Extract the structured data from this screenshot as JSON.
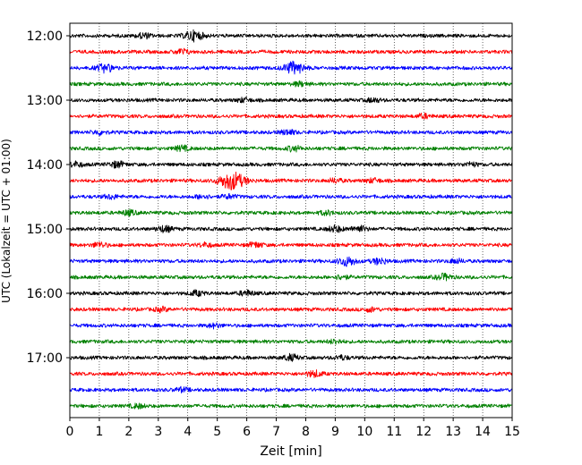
{
  "chart_data": {
    "type": "line",
    "title": "",
    "xlabel": "Zeit  [min]",
    "ylabel": "UTC (Lokalzeit = UTC + 01:00)",
    "xlim": [
      0,
      15
    ],
    "x_ticks": [
      "0",
      "1",
      "2",
      "3",
      "4",
      "5",
      "6",
      "7",
      "8",
      "9",
      "10",
      "11",
      "12",
      "13",
      "14",
      "15"
    ],
    "y_ticks": [
      "12:00",
      "13:00",
      "14:00",
      "15:00",
      "16:00",
      "17:00"
    ],
    "grid": "vertical dotted lines at each minute",
    "trace_interval_minutes": 15,
    "row_count": 24,
    "color_cycle": [
      "#000000",
      "#ff0000",
      "#0000ff",
      "#008000"
    ],
    "series": [
      {
        "start": "12:00",
        "color": "#000000",
        "events": [
          [
            4.2,
            1.0
          ],
          [
            2.5,
            0.5
          ]
        ]
      },
      {
        "start": "12:15",
        "color": "#ff0000",
        "events": [
          [
            3.8,
            0.5
          ]
        ]
      },
      {
        "start": "12:30",
        "color": "#0000ff",
        "events": [
          [
            1.2,
            0.8
          ],
          [
            7.6,
            1.2
          ]
        ]
      },
      {
        "start": "12:45",
        "color": "#008000",
        "events": [
          [
            7.8,
            0.4
          ]
        ]
      },
      {
        "start": "13:00",
        "color": "#000000",
        "events": [
          [
            5.9,
            0.4
          ],
          [
            10.3,
            0.4
          ]
        ]
      },
      {
        "start": "13:15",
        "color": "#ff0000",
        "events": [
          [
            12.0,
            0.4
          ]
        ]
      },
      {
        "start": "13:30",
        "color": "#0000ff",
        "events": [
          [
            1.0,
            0.4
          ],
          [
            7.4,
            0.5
          ]
        ]
      },
      {
        "start": "13:45",
        "color": "#008000",
        "events": [
          [
            3.8,
            0.5
          ],
          [
            7.6,
            0.5
          ]
        ]
      },
      {
        "start": "14:00",
        "color": "#000000",
        "events": [
          [
            0.2,
            0.5
          ],
          [
            1.6,
            0.6
          ],
          [
            13.6,
            0.4
          ]
        ]
      },
      {
        "start": "14:15",
        "color": "#ff0000",
        "events": [
          [
            5.5,
            1.8
          ],
          [
            9.0,
            0.4
          ],
          [
            10.3,
            0.4
          ]
        ]
      },
      {
        "start": "14:30",
        "color": "#0000ff",
        "events": [
          [
            1.4,
            0.4
          ],
          [
            4.5,
            0.4
          ],
          [
            5.4,
            0.4
          ]
        ]
      },
      {
        "start": "14:45",
        "color": "#008000",
        "events": [
          [
            2.0,
            0.5
          ],
          [
            8.7,
            0.4
          ]
        ]
      },
      {
        "start": "15:00",
        "color": "#000000",
        "events": [
          [
            3.2,
            0.6
          ],
          [
            9.0,
            0.6
          ],
          [
            9.8,
            0.6
          ]
        ]
      },
      {
        "start": "15:15",
        "color": "#ff0000",
        "events": [
          [
            1.0,
            0.5
          ],
          [
            4.6,
            0.4
          ],
          [
            6.3,
            0.5
          ]
        ]
      },
      {
        "start": "15:30",
        "color": "#0000ff",
        "events": [
          [
            9.4,
            0.9
          ],
          [
            10.5,
            0.6
          ],
          [
            13.1,
            0.4
          ]
        ]
      },
      {
        "start": "15:45",
        "color": "#008000",
        "events": [
          [
            9.2,
            0.4
          ],
          [
            12.7,
            0.6
          ]
        ]
      },
      {
        "start": "16:00",
        "color": "#000000",
        "events": [
          [
            4.3,
            0.5
          ],
          [
            6.0,
            0.5
          ]
        ]
      },
      {
        "start": "16:15",
        "color": "#ff0000",
        "events": [
          [
            3.1,
            0.4
          ],
          [
            10.2,
            0.4
          ]
        ]
      },
      {
        "start": "16:30",
        "color": "#0000ff",
        "events": [
          [
            4.9,
            0.4
          ]
        ]
      },
      {
        "start": "16:45",
        "color": "#008000",
        "events": [
          [
            9.0,
            0.4
          ]
        ]
      },
      {
        "start": "17:00",
        "color": "#000000",
        "events": [
          [
            7.5,
            0.6
          ],
          [
            9.2,
            0.4
          ]
        ]
      },
      {
        "start": "17:15",
        "color": "#ff0000",
        "events": [
          [
            8.3,
            0.6
          ]
        ]
      },
      {
        "start": "17:30",
        "color": "#0000ff",
        "events": [
          [
            3.8,
            0.4
          ]
        ]
      },
      {
        "start": "17:45",
        "color": "#008000",
        "events": [
          [
            2.3,
            0.4
          ]
        ]
      }
    ]
  }
}
